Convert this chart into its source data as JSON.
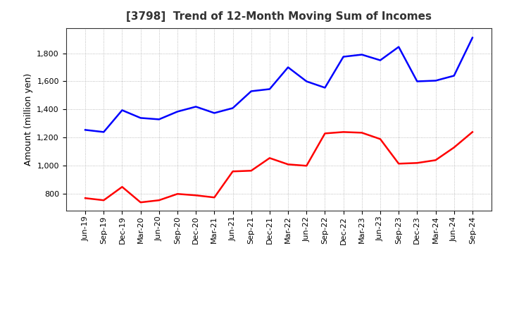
{
  "title": "[3798]  Trend of 12-Month Moving Sum of Incomes",
  "ylabel": "Amount (million yen)",
  "x_labels": [
    "Jun-19",
    "Sep-19",
    "Dec-19",
    "Mar-20",
    "Jun-20",
    "Sep-20",
    "Dec-20",
    "Mar-21",
    "Jun-21",
    "Sep-21",
    "Dec-21",
    "Mar-22",
    "Jun-22",
    "Sep-22",
    "Dec-22",
    "Mar-23",
    "Jun-23",
    "Sep-23",
    "Dec-23",
    "Mar-24",
    "Jun-24",
    "Sep-24"
  ],
  "ordinary_income": [
    1255,
    1240,
    1395,
    1340,
    1330,
    1385,
    1420,
    1375,
    1410,
    1530,
    1545,
    1700,
    1600,
    1555,
    1775,
    1790,
    1750,
    1845,
    1600,
    1605,
    1640,
    1910
  ],
  "net_income": [
    770,
    755,
    850,
    740,
    755,
    800,
    790,
    775,
    960,
    965,
    1055,
    1010,
    1000,
    1230,
    1240,
    1235,
    1190,
    1015,
    1020,
    1040,
    1130,
    1240
  ],
  "ordinary_color": "#0000ff",
  "net_color": "#ff0000",
  "background_color": "#ffffff",
  "grid_color": "#aaaaaa",
  "ylim_min": 680,
  "ylim_max": 1980,
  "yticks": [
    800,
    1000,
    1200,
    1400,
    1600,
    1800
  ],
  "title_fontsize": 11,
  "ylabel_fontsize": 9,
  "tick_fontsize": 8,
  "legend_fontsize": 9
}
